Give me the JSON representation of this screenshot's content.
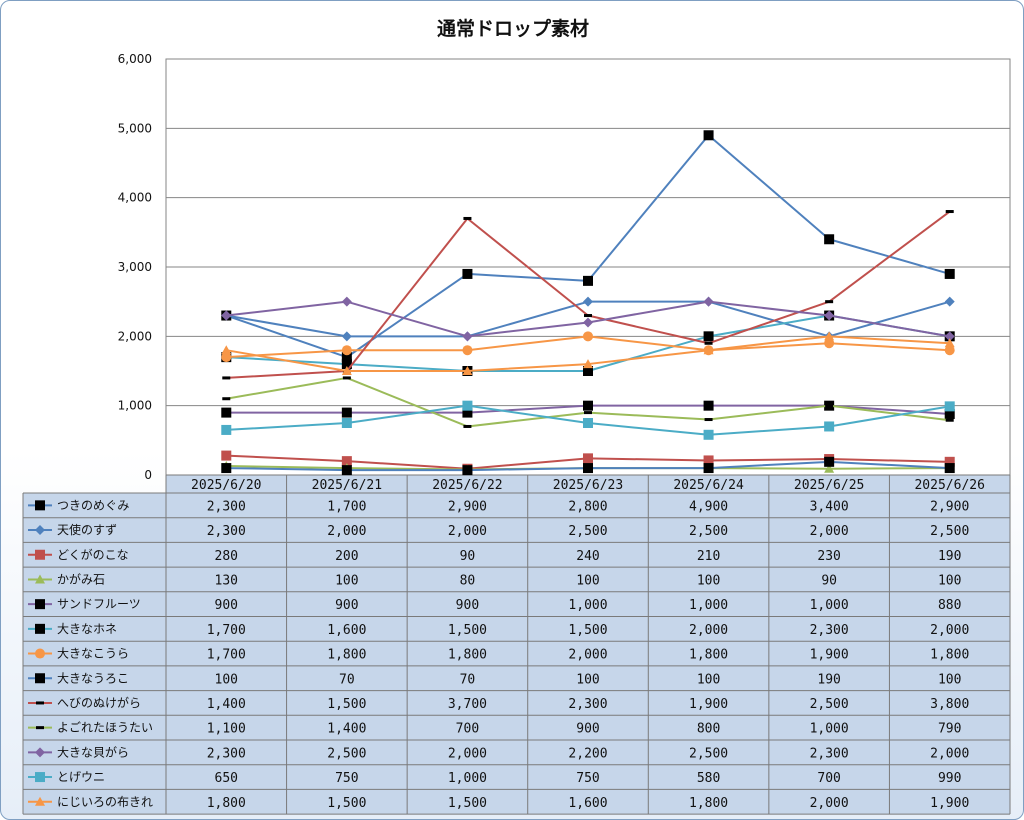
{
  "chart_data": {
    "type": "line",
    "title": "通常ドロップ素材",
    "categories": [
      "2025/6/20",
      "2025/6/21",
      "2025/6/22",
      "2025/6/23",
      "2025/6/24",
      "2025/6/25",
      "2025/6/26"
    ],
    "ylim": [
      0,
      6000
    ],
    "yticks": [
      0,
      1000,
      2000,
      3000,
      4000,
      5000,
      6000
    ],
    "ytick_labels": [
      "0",
      "1,000",
      "2,000",
      "3,000",
      "4,000",
      "5,000",
      "6,000"
    ],
    "grid": true,
    "legend_placement": "data-table",
    "series": [
      {
        "name": "つきのめぐみ",
        "color": "#4f81bd",
        "marker": "square-black",
        "values": [
          2300,
          1700,
          2900,
          2800,
          4900,
          3400,
          2900
        ],
        "labels": [
          "2,300",
          "1,700",
          "2,900",
          "2,800",
          "4,900",
          "3,400",
          "2,900"
        ]
      },
      {
        "name": "天使のすず",
        "color": "#4f81bd",
        "marker": "diamond",
        "values": [
          2300,
          2000,
          2000,
          2500,
          2500,
          2000,
          2500
        ],
        "labels": [
          "2,300",
          "2,000",
          "2,000",
          "2,500",
          "2,500",
          "2,000",
          "2,500"
        ]
      },
      {
        "name": "どくがのこな",
        "color": "#c0504d",
        "marker": "square",
        "values": [
          280,
          200,
          90,
          240,
          210,
          230,
          190
        ],
        "labels": [
          "280",
          "200",
          "90",
          "240",
          "210",
          "230",
          "190"
        ]
      },
      {
        "name": "かがみ石",
        "color": "#9bbb59",
        "marker": "triangle",
        "values": [
          130,
          100,
          80,
          100,
          100,
          90,
          100
        ],
        "labels": [
          "130",
          "100",
          "80",
          "100",
          "100",
          "90",
          "100"
        ]
      },
      {
        "name": "サンドフルーツ",
        "color": "#8064a2",
        "marker": "square-black",
        "values": [
          900,
          900,
          900,
          1000,
          1000,
          1000,
          880
        ],
        "labels": [
          "900",
          "900",
          "900",
          "1,000",
          "1,000",
          "1,000",
          "880"
        ]
      },
      {
        "name": "大きなホネ",
        "color": "#4bacc6",
        "marker": "square-black",
        "values": [
          1700,
          1600,
          1500,
          1500,
          2000,
          2300,
          2000
        ],
        "labels": [
          "1,700",
          "1,600",
          "1,500",
          "1,500",
          "2,000",
          "2,300",
          "2,000"
        ]
      },
      {
        "name": "大きなこうら",
        "color": "#f79646",
        "marker": "circle",
        "values": [
          1700,
          1800,
          1800,
          2000,
          1800,
          1900,
          1800
        ],
        "labels": [
          "1,700",
          "1,800",
          "1,800",
          "2,000",
          "1,800",
          "1,900",
          "1,800"
        ]
      },
      {
        "name": "大きなうろこ",
        "color": "#4f81bd",
        "marker": "square-black",
        "values": [
          100,
          70,
          70,
          100,
          100,
          190,
          100
        ],
        "labels": [
          "100",
          "70",
          "70",
          "100",
          "100",
          "190",
          "100"
        ]
      },
      {
        "name": "へびのぬけがら",
        "color": "#c0504d",
        "marker": "dash",
        "values": [
          1400,
          1500,
          3700,
          2300,
          1900,
          2500,
          3800
        ],
        "labels": [
          "1,400",
          "1,500",
          "3,700",
          "2,300",
          "1,900",
          "2,500",
          "3,800"
        ]
      },
      {
        "name": "よごれたほうたい",
        "color": "#9bbb59",
        "marker": "dash",
        "values": [
          1100,
          1400,
          700,
          900,
          800,
          1000,
          790
        ],
        "labels": [
          "1,100",
          "1,400",
          "700",
          "900",
          "800",
          "1,000",
          "790"
        ]
      },
      {
        "name": "大きな貝がら",
        "color": "#8064a2",
        "marker": "diamond",
        "values": [
          2300,
          2500,
          2000,
          2200,
          2500,
          2300,
          2000
        ],
        "labels": [
          "2,300",
          "2,500",
          "2,000",
          "2,200",
          "2,500",
          "2,300",
          "2,000"
        ]
      },
      {
        "name": "とげウニ",
        "color": "#4bacc6",
        "marker": "square",
        "values": [
          650,
          750,
          1000,
          750,
          580,
          700,
          990
        ],
        "labels": [
          "650",
          "750",
          "1,000",
          "750",
          "580",
          "700",
          "990"
        ]
      },
      {
        "name": "にじいろの布きれ",
        "color": "#f79646",
        "marker": "triangle",
        "values": [
          1800,
          1500,
          1500,
          1600,
          1800,
          2000,
          1900
        ],
        "labels": [
          "1,800",
          "1,500",
          "1,500",
          "1,600",
          "1,800",
          "2,000",
          "1,900"
        ]
      }
    ]
  }
}
